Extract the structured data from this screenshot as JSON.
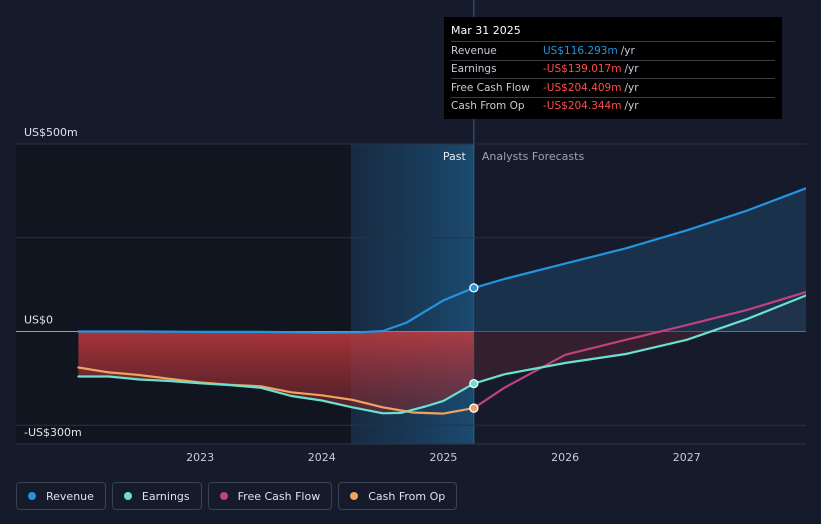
{
  "tooltip": {
    "date": "Mar 31 2025",
    "rows": [
      {
        "label": "Revenue",
        "value": "US$116.293m",
        "unit": "/yr",
        "color": "#2394df"
      },
      {
        "label": "Earnings",
        "value": "-US$139.017m",
        "unit": "/yr",
        "color": "#ff4d4f"
      },
      {
        "label": "Free Cash Flow",
        "value": "-US$204.409m",
        "unit": "/yr",
        "color": "#ff4d4f"
      },
      {
        "label": "Cash From Op",
        "value": "-US$204.344m",
        "unit": "/yr",
        "color": "#ff4d4f"
      }
    ]
  },
  "legend": [
    {
      "label": "Revenue",
      "color": "#2394df"
    },
    {
      "label": "Earnings",
      "color": "#6ce0cf"
    },
    {
      "label": "Free Cash Flow",
      "color": "#c2407f"
    },
    {
      "label": "Cash From Op",
      "color": "#f0a35e"
    }
  ],
  "chart_data": {
    "type": "line",
    "y_axis_labels": [
      "US$500m",
      "US$0",
      "-US$300m"
    ],
    "ylim": [
      -300,
      500
    ],
    "x_ticks": [
      {
        "x": 2023,
        "label": "2023"
      },
      {
        "x": 2024,
        "label": "2024"
      },
      {
        "x": 2025,
        "label": "2025"
      },
      {
        "x": 2026,
        "label": "2026"
      },
      {
        "x": 2027,
        "label": "2027"
      }
    ],
    "xlim": [
      2021.75,
      2027.98
    ],
    "past_label": "Past",
    "forecast_label": "Analysts Forecasts",
    "past_start": 2024.24,
    "forecast_start": 2025.25,
    "series": [
      {
        "name": "Revenue",
        "color": "#2394df",
        "fill": true,
        "points": [
          [
            2022.0,
            0
          ],
          [
            2022.5,
            0
          ],
          [
            2023.0,
            -1
          ],
          [
            2023.5,
            -1
          ],
          [
            2024.0,
            -3
          ],
          [
            2024.3,
            -2
          ],
          [
            2024.5,
            1
          ],
          [
            2024.7,
            24
          ],
          [
            2024.85,
            54
          ],
          [
            2025.0,
            83
          ],
          [
            2025.25,
            116.3
          ],
          [
            2025.5,
            140
          ],
          [
            2026.0,
            181
          ],
          [
            2026.5,
            222
          ],
          [
            2027.0,
            270
          ],
          [
            2027.5,
            323
          ],
          [
            2027.98,
            382
          ]
        ]
      },
      {
        "name": "Earnings",
        "color": "#6ce0cf",
        "fill": true,
        "points": [
          [
            2022.0,
            -120
          ],
          [
            2022.25,
            -120
          ],
          [
            2022.5,
            -128
          ],
          [
            2022.75,
            -132
          ],
          [
            2023.0,
            -138
          ],
          [
            2023.25,
            -143
          ],
          [
            2023.5,
            -150
          ],
          [
            2023.75,
            -172
          ],
          [
            2024.0,
            -184
          ],
          [
            2024.25,
            -202
          ],
          [
            2024.5,
            -218
          ],
          [
            2024.65,
            -217
          ],
          [
            2024.85,
            -200
          ],
          [
            2025.0,
            -185
          ],
          [
            2025.25,
            -139
          ],
          [
            2025.5,
            -114
          ],
          [
            2026.0,
            -84
          ],
          [
            2026.5,
            -60
          ],
          [
            2027.0,
            -22
          ],
          [
            2027.5,
            34
          ],
          [
            2027.98,
            96
          ]
        ]
      },
      {
        "name": "Free Cash Flow",
        "color": "#c2407f",
        "fill": false,
        "points": [
          [
            2025.25,
            -204.4
          ],
          [
            2025.5,
            -150
          ],
          [
            2026.0,
            -62
          ],
          [
            2026.5,
            -22
          ],
          [
            2027.0,
            17
          ],
          [
            2027.5,
            58
          ],
          [
            2027.98,
            105
          ]
        ]
      },
      {
        "name": "Cash From Op",
        "color": "#f0a35e",
        "fill": false,
        "points": [
          [
            2022.0,
            -96
          ],
          [
            2022.25,
            -109
          ],
          [
            2022.5,
            -116
          ],
          [
            2022.75,
            -126
          ],
          [
            2023.0,
            -136
          ],
          [
            2023.25,
            -142
          ],
          [
            2023.5,
            -146
          ],
          [
            2023.75,
            -162
          ],
          [
            2024.0,
            -170
          ],
          [
            2024.25,
            -182
          ],
          [
            2024.5,
            -202
          ],
          [
            2024.75,
            -216
          ],
          [
            2025.0,
            -219
          ],
          [
            2025.25,
            -204.3
          ]
        ]
      }
    ],
    "markers": [
      {
        "series": "Revenue",
        "x": 2025.25,
        "y": 116.3,
        "color": "#2394df"
      },
      {
        "series": "Earnings",
        "x": 2025.25,
        "y": -139.0,
        "color": "#6ce0cf"
      },
      {
        "series": "Free Cash Flow",
        "x": 2025.25,
        "y": -204.4,
        "color": "#c2407f"
      },
      {
        "series": "Cash From Op",
        "x": 2025.25,
        "y": -204.3,
        "color": "#f0a35e"
      }
    ]
  }
}
